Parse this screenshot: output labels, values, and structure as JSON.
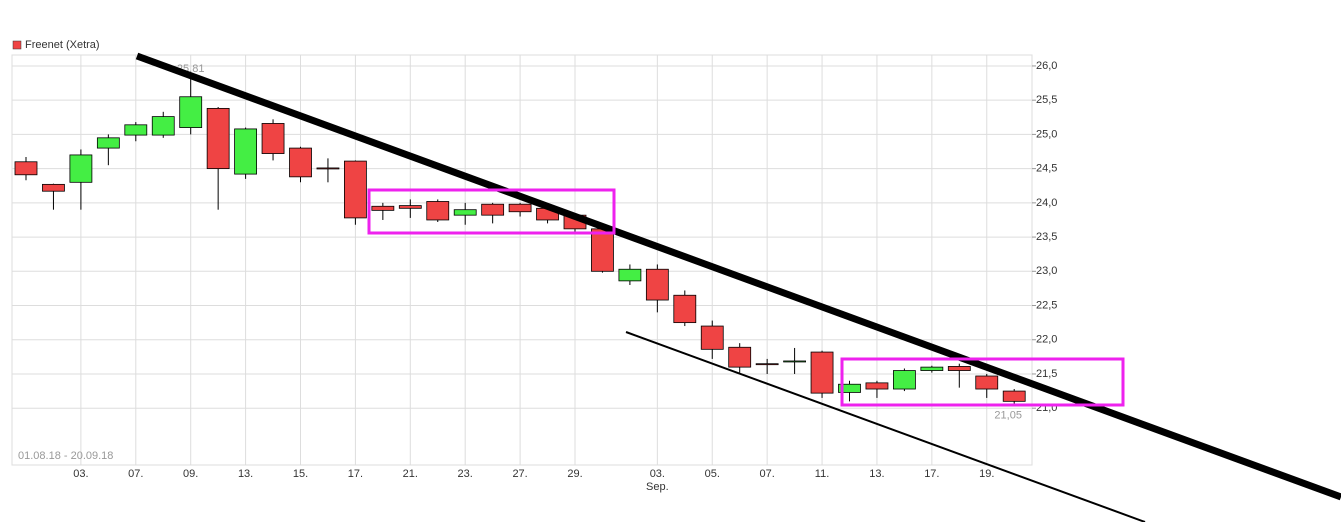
{
  "chart_data": {
    "type": "candlestick",
    "date_range": "01.08.18 - 20.09.18",
    "categories": [
      null,
      null,
      "03.",
      null,
      "07.",
      null,
      "09.",
      null,
      "13.",
      null,
      "15.",
      null,
      "17.",
      null,
      "21.",
      null,
      "23.",
      null,
      "27.",
      null,
      "29.",
      null,
      null,
      "03.",
      null,
      "05.",
      null,
      "07.",
      null,
      "11.",
      null,
      "13.",
      null,
      "17.",
      null,
      "19.",
      null
    ],
    "category_months": [
      null,
      null,
      null,
      null,
      null,
      null,
      null,
      null,
      null,
      null,
      null,
      null,
      null,
      null,
      null,
      null,
      null,
      null,
      null,
      null,
      null,
      null,
      null,
      "Sep.",
      null,
      null,
      null,
      null,
      null,
      null,
      null,
      null,
      null,
      null,
      null,
      null,
      null
    ],
    "series": [
      {
        "name": "Freenet (Xetra)",
        "color": "#ef4444",
        "up_color": "#44ee44",
        "open": [
          24.6,
          24.27,
          24.3,
          24.8,
          24.99,
          24.99,
          25.1,
          25.38,
          24.42,
          25.16,
          24.8,
          24.51,
          24.61,
          23.95,
          23.96,
          24.02,
          23.82,
          23.98,
          23.98,
          23.92,
          23.82,
          23.62,
          22.86,
          23.03,
          22.65,
          22.2,
          21.89,
          21.65,
          21.68,
          21.82,
          21.23,
          21.37,
          21.28,
          21.55,
          21.61,
          21.47,
          21.25
        ],
        "high": [
          24.67,
          24.28,
          24.78,
          25.0,
          25.18,
          25.33,
          25.81,
          25.4,
          25.1,
          25.22,
          24.82,
          24.65,
          24.62,
          24.0,
          24.05,
          24.05,
          24.0,
          24.0,
          24.0,
          23.97,
          23.85,
          23.65,
          23.1,
          23.1,
          22.72,
          22.28,
          21.95,
          21.72,
          21.88,
          21.84,
          21.4,
          21.4,
          21.58,
          21.62,
          21.65,
          21.5,
          21.28
        ],
        "low": [
          24.33,
          23.9,
          23.9,
          24.55,
          24.9,
          24.95,
          25.0,
          23.9,
          24.35,
          24.62,
          24.3,
          24.3,
          23.68,
          23.75,
          23.78,
          23.72,
          23.68,
          23.7,
          23.8,
          23.7,
          23.58,
          22.98,
          22.8,
          22.4,
          22.2,
          21.72,
          21.52,
          21.5,
          21.5,
          21.15,
          21.1,
          21.15,
          21.25,
          21.52,
          21.3,
          21.15,
          21.05
        ],
        "close": [
          24.41,
          24.17,
          24.7,
          24.95,
          25.14,
          25.26,
          25.55,
          24.5,
          25.08,
          24.72,
          24.38,
          24.5,
          23.78,
          23.89,
          23.92,
          23.75,
          23.9,
          23.82,
          23.87,
          23.75,
          23.62,
          23.0,
          23.03,
          22.58,
          22.25,
          21.86,
          21.6,
          21.64,
          21.69,
          21.22,
          21.35,
          21.28,
          21.55,
          21.6,
          21.55,
          21.28,
          21.1
        ]
      }
    ],
    "high_label": {
      "value": 25.81,
      "label": "25,81"
    },
    "low_label": {
      "value": 21.05,
      "label": "21,05"
    },
    "ylim": [
      20.17,
      26.16
    ],
    "yticks": [
      {
        "value": 21,
        "label": "21,0"
      },
      {
        "value": 21.5,
        "label": "21,5"
      },
      {
        "value": 22,
        "label": "22,0"
      },
      {
        "value": 22.5,
        "label": "22,5"
      },
      {
        "value": 23,
        "label": "23,0"
      },
      {
        "value": 23.5,
        "label": "23,5"
      },
      {
        "value": 24,
        "label": "24,0"
      },
      {
        "value": 24.5,
        "label": "24,5"
      },
      {
        "value": 25,
        "label": "25,0"
      },
      {
        "value": 25.5,
        "label": "25,5"
      },
      {
        "value": 26,
        "label": "26,0"
      }
    ],
    "grid": true
  }
}
